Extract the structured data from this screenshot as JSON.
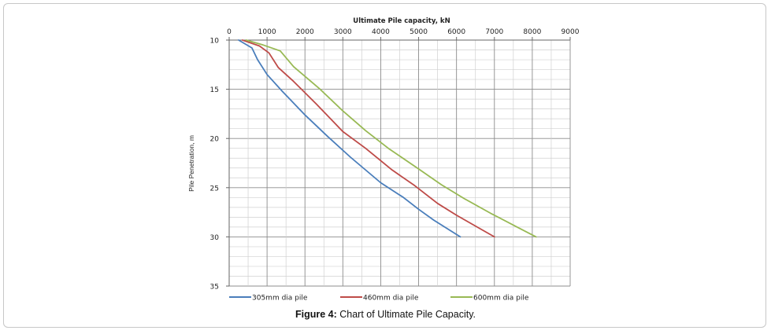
{
  "figure": {
    "caption_label": "Figure 4:",
    "caption_text": " Chart of Ultimate Pile Capacity."
  },
  "chart_data": {
    "type": "line",
    "title": "Ultimate Pile capacity, kN",
    "xlabel": "Ultimate Pile capacity, kN",
    "ylabel": "Pile Penetration, m",
    "xlim": [
      0,
      9000
    ],
    "ylim": [
      10,
      35
    ],
    "y_inverted": true,
    "x_axis_position": "top",
    "x_ticks": [
      "0",
      "1000",
      "2000",
      "3000",
      "4000",
      "5000",
      "6000",
      "7000",
      "8000",
      "9000"
    ],
    "y_ticks": [
      "10",
      "15",
      "20",
      "25",
      "30",
      "35"
    ],
    "grid": true,
    "legend_position": "bottom",
    "series": [
      {
        "name": "305mm dia pile",
        "color": "#4a7ebb",
        "points": [
          [
            250,
            10
          ],
          [
            600,
            10.8
          ],
          [
            750,
            12
          ],
          [
            1000,
            13.5
          ],
          [
            1400,
            15.2
          ],
          [
            2000,
            17.6
          ],
          [
            2600,
            19.8
          ],
          [
            3200,
            21.9
          ],
          [
            4000,
            24.5
          ],
          [
            4600,
            26
          ],
          [
            5000,
            27.2
          ],
          [
            5400,
            28.3
          ],
          [
            6100,
            30
          ]
        ]
      },
      {
        "name": "460mm dia pile",
        "color": "#be4b48",
        "points": [
          [
            350,
            10
          ],
          [
            800,
            10.6
          ],
          [
            1050,
            11.3
          ],
          [
            1300,
            12.8
          ],
          [
            1700,
            14.2
          ],
          [
            2300,
            16.5
          ],
          [
            3000,
            19.3
          ],
          [
            3600,
            21
          ],
          [
            4300,
            23.2
          ],
          [
            4900,
            24.8
          ],
          [
            5500,
            26.6
          ],
          [
            6000,
            27.8
          ],
          [
            6500,
            28.9
          ],
          [
            7000,
            30
          ]
        ]
      },
      {
        "name": "600mm dia pile",
        "color": "#98b954",
        "points": [
          [
            450,
            10
          ],
          [
            900,
            10.5
          ],
          [
            1350,
            11.1
          ],
          [
            1700,
            12.7
          ],
          [
            2400,
            15
          ],
          [
            3000,
            17.2
          ],
          [
            3600,
            19.2
          ],
          [
            4200,
            21
          ],
          [
            5000,
            23.1
          ],
          [
            5600,
            24.7
          ],
          [
            6200,
            26.1
          ],
          [
            6900,
            27.6
          ],
          [
            7600,
            29
          ],
          [
            8100,
            30
          ]
        ]
      }
    ]
  }
}
